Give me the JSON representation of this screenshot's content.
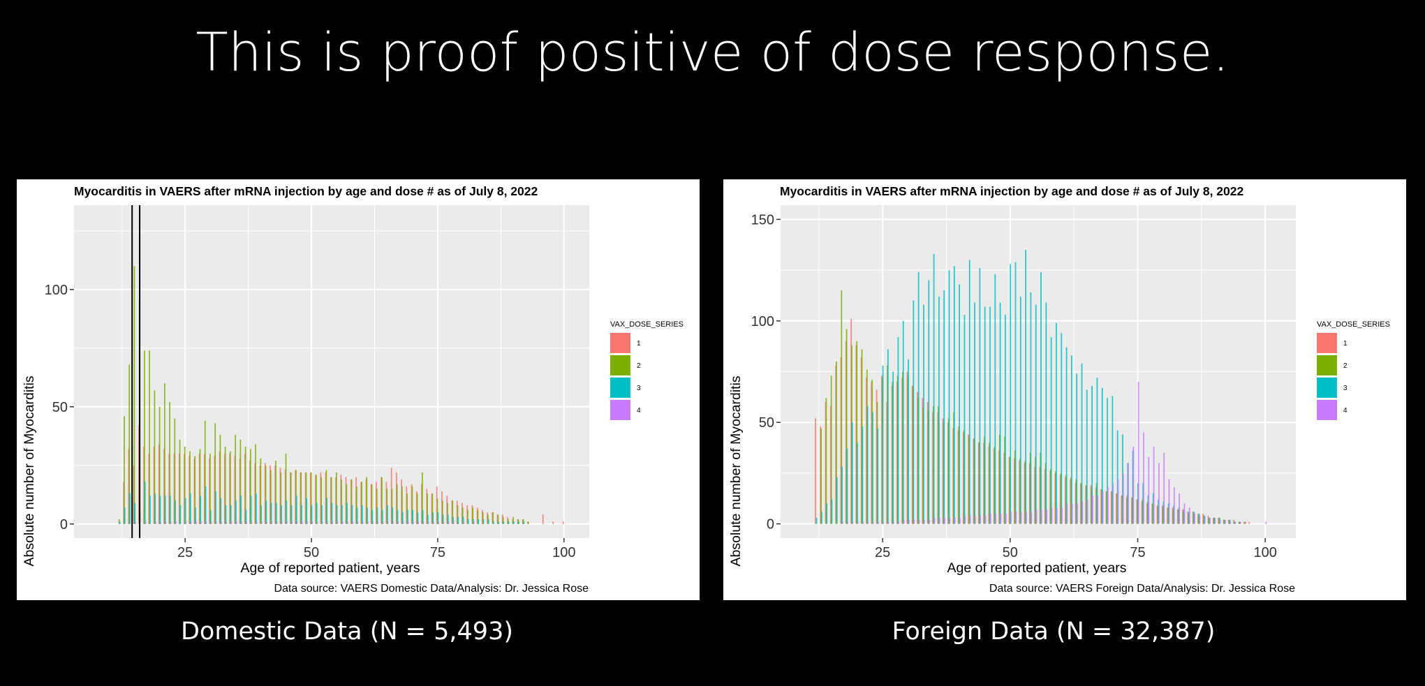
{
  "slide": {
    "title": "This is proof positive of dose response.",
    "domestic_caption": "Domestic Data (N = 5,493)",
    "foreign_caption": "Foreign Data (N = 32,387)"
  },
  "colors": {
    "dose_1": "#F8766D",
    "dose_2": "#7CAE00",
    "dose_3": "#00BFC4",
    "dose_4": "#C77CFF",
    "panel_background": "#EBEBEB",
    "slide_background": "#000000"
  },
  "chart_data": [
    {
      "type": "bar",
      "id": "domestic",
      "title": "Myocarditis in VAERS after mRNA injection by age and dose # as of July 8, 2022",
      "xlabel": "Age of reported patient, years",
      "ylabel": "Absolute number of Myocarditis",
      "caption": "Data source: VAERS Domestic Data/Analysis: Dr. Jessica Rose",
      "xlim": [
        3,
        105
      ],
      "ylim": [
        -6,
        136
      ],
      "xticks": [
        25,
        50,
        75,
        100
      ],
      "yticks": [
        0,
        50,
        100
      ],
      "grid": true,
      "position": "identity (overlapping)",
      "vlines": [
        14.5,
        16
      ],
      "legend": {
        "title": "VAX_DOSE_SERIES",
        "position": "right",
        "labels": [
          "1",
          "2",
          "3",
          "4"
        ]
      },
      "x": [
        12,
        13,
        14,
        15,
        16,
        17,
        18,
        19,
        20,
        21,
        22,
        23,
        24,
        25,
        26,
        27,
        28,
        29,
        30,
        31,
        32,
        33,
        34,
        35,
        36,
        37,
        38,
        39,
        40,
        41,
        42,
        43,
        44,
        45,
        46,
        47,
        48,
        49,
        50,
        51,
        52,
        53,
        54,
        55,
        56,
        57,
        58,
        59,
        60,
        61,
        62,
        63,
        64,
        65,
        66,
        67,
        68,
        69,
        70,
        71,
        72,
        73,
        74,
        75,
        76,
        77,
        78,
        79,
        80,
        81,
        82,
        83,
        84,
        85,
        86,
        87,
        88,
        89,
        90,
        91,
        92,
        93,
        94,
        95,
        96,
        97,
        98,
        99,
        100
      ],
      "series": [
        {
          "name": "1",
          "values": [
            0,
            18,
            32,
            25,
            42,
            33,
            30,
            33,
            34,
            32,
            30,
            30,
            30,
            30,
            29,
            28,
            30,
            30,
            28,
            29,
            31,
            30,
            30,
            29,
            28,
            30,
            27,
            26,
            25,
            26,
            25,
            25,
            24,
            23,
            22,
            23,
            22,
            22,
            22,
            21,
            22,
            22,
            20,
            20,
            21,
            20,
            19,
            20,
            18,
            19,
            17,
            18,
            20,
            18,
            24,
            22,
            19,
            16,
            17,
            14,
            17,
            15,
            13,
            16,
            14,
            12,
            10,
            10,
            9,
            8,
            8,
            7,
            6,
            5,
            5,
            4,
            4,
            3,
            2,
            2,
            2,
            1,
            0,
            0,
            4,
            0,
            1,
            0,
            1
          ]
        },
        {
          "name": "2",
          "values": [
            2,
            46,
            68,
            110,
            96,
            74,
            74,
            57,
            50,
            60,
            52,
            45,
            36,
            33,
            31,
            29,
            32,
            44,
            30,
            43,
            38,
            33,
            31,
            38,
            36,
            33,
            32,
            34,
            28,
            25,
            23,
            27,
            22,
            30,
            22,
            23,
            22,
            22,
            22,
            21,
            20,
            23,
            20,
            22,
            19,
            17,
            19,
            16,
            18,
            20,
            17,
            15,
            20,
            15,
            15,
            17,
            16,
            13,
            16,
            13,
            22,
            13,
            13,
            11,
            10,
            9,
            10,
            8,
            7,
            6,
            7,
            6,
            5,
            4,
            5,
            4,
            3,
            2,
            3,
            2,
            2,
            1,
            0,
            0,
            0,
            0,
            0,
            0,
            0
          ]
        },
        {
          "name": "3",
          "values": [
            1,
            7,
            13,
            9,
            5,
            18,
            12,
            13,
            12,
            12,
            12,
            10,
            8,
            11,
            13,
            7,
            12,
            16,
            6,
            14,
            11,
            8,
            8,
            10,
            12,
            6,
            12,
            13,
            8,
            10,
            9,
            9,
            8,
            10,
            8,
            12,
            8,
            11,
            8,
            9,
            8,
            11,
            9,
            8,
            8,
            9,
            8,
            7,
            8,
            7,
            6,
            7,
            6,
            8,
            7,
            6,
            5,
            6,
            6,
            5,
            6,
            4,
            5,
            5,
            4,
            4,
            3,
            3,
            3,
            2,
            2,
            2,
            2,
            2,
            1,
            1,
            1,
            1,
            1,
            1,
            1,
            0,
            0,
            0,
            0,
            0,
            0,
            0,
            0
          ]
        },
        {
          "name": "4",
          "values": [
            0,
            0,
            0,
            1,
            0,
            1,
            0,
            1,
            1,
            1,
            1,
            1,
            0,
            1,
            1,
            1,
            1,
            1,
            1,
            1,
            1,
            1,
            1,
            1,
            1,
            1,
            1,
            1,
            1,
            1,
            1,
            1,
            1,
            1,
            1,
            1,
            1,
            1,
            1,
            1,
            1,
            1,
            1,
            1,
            1,
            1,
            1,
            1,
            1,
            1,
            1,
            1,
            1,
            1,
            1,
            1,
            1,
            1,
            1,
            1,
            1,
            1,
            1,
            1,
            1,
            1,
            1,
            0,
            1,
            0,
            1,
            0,
            0,
            0,
            0,
            0,
            0,
            0,
            0,
            0,
            0,
            0,
            0,
            0,
            0,
            0,
            0,
            0,
            0
          ]
        }
      ]
    },
    {
      "type": "bar",
      "id": "foreign",
      "title": "Myocarditis in VAERS after mRNA injection by age and dose # as of July 8, 2022",
      "xlabel": "Age of reported patient, years",
      "ylabel": "Absolute number of Myocarditis",
      "caption": "Data source: VAERS Foreign Data/Analysis: Dr. Jessica Rose",
      "xlim": [
        5,
        106
      ],
      "ylim": [
        -7,
        157
      ],
      "xticks": [
        25,
        50,
        75,
        100
      ],
      "yticks": [
        0,
        50,
        100,
        150
      ],
      "grid": true,
      "position": "identity (overlapping)",
      "legend": {
        "title": "VAX_DOSE_SERIES",
        "position": "right",
        "labels": [
          "1",
          "2",
          "3",
          "4"
        ]
      },
      "x": [
        12,
        13,
        14,
        15,
        16,
        17,
        18,
        19,
        20,
        21,
        22,
        23,
        24,
        25,
        26,
        27,
        28,
        29,
        30,
        31,
        32,
        33,
        34,
        35,
        36,
        37,
        38,
        39,
        40,
        41,
        42,
        43,
        44,
        45,
        46,
        47,
        48,
        49,
        50,
        51,
        52,
        53,
        54,
        55,
        56,
        57,
        58,
        59,
        60,
        61,
        62,
        63,
        64,
        65,
        66,
        67,
        68,
        69,
        70,
        71,
        72,
        73,
        74,
        75,
        76,
        77,
        78,
        79,
        80,
        81,
        82,
        83,
        84,
        85,
        86,
        87,
        88,
        89,
        90,
        91,
        92,
        93,
        94,
        95,
        96,
        97,
        98,
        99,
        100
      ],
      "series": [
        {
          "name": "1",
          "values": [
            52,
            48,
            60,
            58,
            78,
            82,
            90,
            101,
            88,
            82,
            72,
            70,
            66,
            73,
            60,
            68,
            70,
            72,
            75,
            68,
            65,
            62,
            60,
            55,
            55,
            52,
            50,
            47,
            46,
            45,
            44,
            42,
            40,
            40,
            38,
            37,
            36,
            35,
            33,
            32,
            31,
            30,
            30,
            28,
            28,
            27,
            26,
            25,
            24,
            23,
            22,
            20,
            20,
            19,
            19,
            18,
            17,
            16,
            16,
            15,
            14,
            13,
            13,
            12,
            11,
            10,
            10,
            9,
            9,
            8,
            8,
            7,
            7,
            6,
            6,
            5,
            5,
            4,
            3,
            3,
            2,
            2,
            2,
            1,
            1,
            1,
            0,
            0,
            0
          ]
        },
        {
          "name": "2",
          "values": [
            0,
            47,
            62,
            73,
            80,
            115,
            96,
            88,
            90,
            86,
            76,
            71,
            60,
            72,
            78,
            70,
            73,
            75,
            72,
            68,
            62,
            57,
            56,
            58,
            58,
            50,
            52,
            55,
            48,
            46,
            43,
            42,
            40,
            43,
            40,
            38,
            44,
            43,
            33,
            36,
            32,
            31,
            35,
            33,
            35,
            30,
            27,
            26,
            25,
            24,
            23,
            22,
            20,
            19,
            18,
            20,
            17,
            16,
            16,
            15,
            14,
            14,
            13,
            12,
            12,
            11,
            10,
            9,
            8,
            8,
            7,
            7,
            6,
            5,
            5,
            4,
            4,
            3,
            3,
            3,
            2,
            2,
            1,
            1,
            1,
            0,
            0,
            0,
            0
          ]
        },
        {
          "name": "3",
          "values": [
            3,
            6,
            10,
            12,
            23,
            28,
            37,
            50,
            40,
            48,
            58,
            55,
            47,
            78,
            86,
            75,
            92,
            100,
            81,
            110,
            124,
            108,
            120,
            133,
            112,
            115,
            125,
            127,
            118,
            103,
            130,
            109,
            126,
            107,
            107,
            123,
            109,
            103,
            128,
            129,
            112,
            135,
            114,
            108,
            124,
            109,
            92,
            99,
            94,
            87,
            83,
            74,
            79,
            66,
            68,
            72,
            67,
            62,
            63,
            46,
            44,
            30,
            36,
            20,
            20,
            14,
            15,
            12,
            11,
            10,
            9,
            8,
            7,
            6,
            6,
            5,
            4,
            3,
            3,
            3,
            2,
            2,
            1,
            1,
            0,
            0,
            0,
            0,
            0
          ]
        },
        {
          "name": "4",
          "values": [
            0,
            0,
            0,
            0,
            0,
            1,
            1,
            1,
            1,
            1,
            1,
            1,
            1,
            1,
            1,
            1,
            1,
            2,
            2,
            2,
            2,
            2,
            2,
            3,
            3,
            3,
            3,
            3,
            3,
            4,
            4,
            4,
            4,
            4,
            5,
            5,
            5,
            5,
            6,
            6,
            6,
            6,
            6,
            7,
            7,
            7,
            8,
            8,
            8,
            10,
            10,
            10,
            11,
            12,
            14,
            14,
            16,
            18,
            20,
            22,
            25,
            30,
            38,
            70,
            45,
            33,
            38,
            30,
            35,
            22,
            18,
            15,
            10,
            8,
            5,
            4,
            4,
            3,
            3,
            2,
            2,
            1,
            1,
            1,
            1,
            0,
            0,
            0,
            1
          ]
        }
      ]
    }
  ]
}
